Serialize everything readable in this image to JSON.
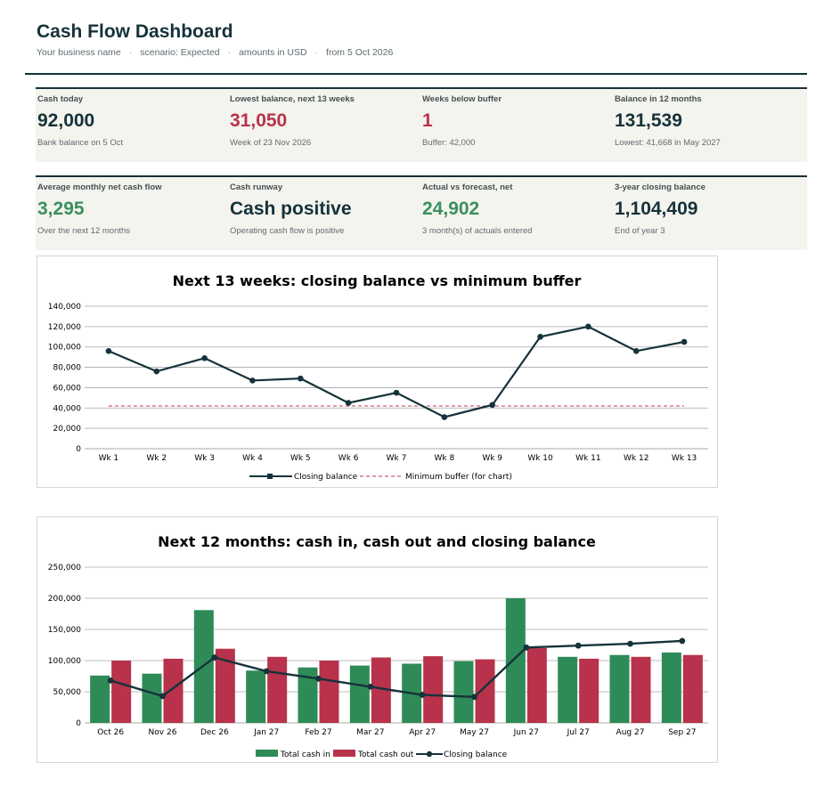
{
  "header": {
    "title": "Cash Flow Dashboard",
    "business": "Your business name",
    "scenario": "scenario: Expected",
    "currency": "amounts in USD",
    "from": "from 5 Oct 2026",
    "separator": "·"
  },
  "kpis_row1": [
    {
      "label": "Cash today",
      "value": "92,000",
      "note": "Bank balance on 5 Oct",
      "tone": "navy"
    },
    {
      "label": "Lowest balance, next 13 weeks",
      "value": "31,050",
      "note": "Week of 23 Nov 2026",
      "tone": "red"
    },
    {
      "label": "Weeks below buffer",
      "value": "1",
      "note": "Buffer: 42,000",
      "tone": "red"
    },
    {
      "label": "Balance in 12 months",
      "value": "131,539",
      "note": "Lowest: 41,668 in May 2027",
      "tone": "navy"
    }
  ],
  "kpis_row2": [
    {
      "label": "Average monthly net cash flow",
      "value": "3,295",
      "note": "Over the next 12 months",
      "tone": "green"
    },
    {
      "label": "Cash runway",
      "value": "Cash positive",
      "note": "Operating cash flow is positive",
      "tone": "navy"
    },
    {
      "label": "Actual vs forecast, net",
      "value": "24,902",
      "note": "3 month(s) of actuals entered",
      "tone": "green"
    },
    {
      "label": "3-year closing balance",
      "value": "1,104,409",
      "note": "End of year 3",
      "tone": "navy"
    }
  ],
  "colors": {
    "navy": "#16323a",
    "red": "#b8324b",
    "green": "#2e8b57",
    "buffer": "#c0394f"
  },
  "chart_data": [
    {
      "type": "line",
      "title": "Next 13 weeks: closing balance vs minimum buffer",
      "categories": [
        "Wk 1",
        "Wk 2",
        "Wk 3",
        "Wk 4",
        "Wk 5",
        "Wk 6",
        "Wk 7",
        "Wk 8",
        "Wk 9",
        "Wk 10",
        "Wk 11",
        "Wk 12",
        "Wk 13"
      ],
      "series": [
        {
          "name": "Closing balance",
          "values": [
            96000,
            76000,
            89000,
            67000,
            69000,
            45000,
            55000,
            31050,
            43000,
            110000,
            120000,
            96000,
            105000
          ]
        },
        {
          "name": "Minimum buffer (for chart)",
          "values": [
            42000,
            42000,
            42000,
            42000,
            42000,
            42000,
            42000,
            42000,
            42000,
            42000,
            42000,
            42000,
            42000
          ]
        }
      ],
      "ylim": [
        0,
        140000
      ],
      "yticks": [
        "0",
        "20,000",
        "40,000",
        "60,000",
        "80,000",
        "100,000",
        "120,000",
        "140,000"
      ],
      "grid": true,
      "legend": "bottom"
    },
    {
      "type": "bar",
      "title": "Next 12 months: cash in, cash out and closing balance",
      "categories": [
        "Oct 26",
        "Nov 26",
        "Dec 26",
        "Jan 27",
        "Feb 27",
        "Mar 27",
        "Apr 27",
        "May 27",
        "Jun 27",
        "Jul 27",
        "Aug 27",
        "Sep 27"
      ],
      "series": [
        {
          "name": "Total cash in",
          "values": [
            76000,
            79000,
            181000,
            84000,
            89000,
            92000,
            95000,
            99000,
            200000,
            106000,
            109000,
            113000
          ]
        },
        {
          "name": "Total cash out",
          "values": [
            100000,
            103000,
            119000,
            106000,
            100000,
            105000,
            107000,
            102000,
            120000,
            103000,
            106000,
            109000
          ]
        },
        {
          "name": "Closing balance",
          "values": [
            68000,
            43000,
            105000,
            83000,
            71000,
            58000,
            45000,
            41668,
            121000,
            124000,
            127000,
            131539
          ]
        }
      ],
      "ylim": [
        0,
        250000
      ],
      "yticks": [
        "0",
        "50,000",
        "100,000",
        "150,000",
        "200,000",
        "250,000"
      ],
      "grid": true,
      "legend": "bottom"
    }
  ]
}
